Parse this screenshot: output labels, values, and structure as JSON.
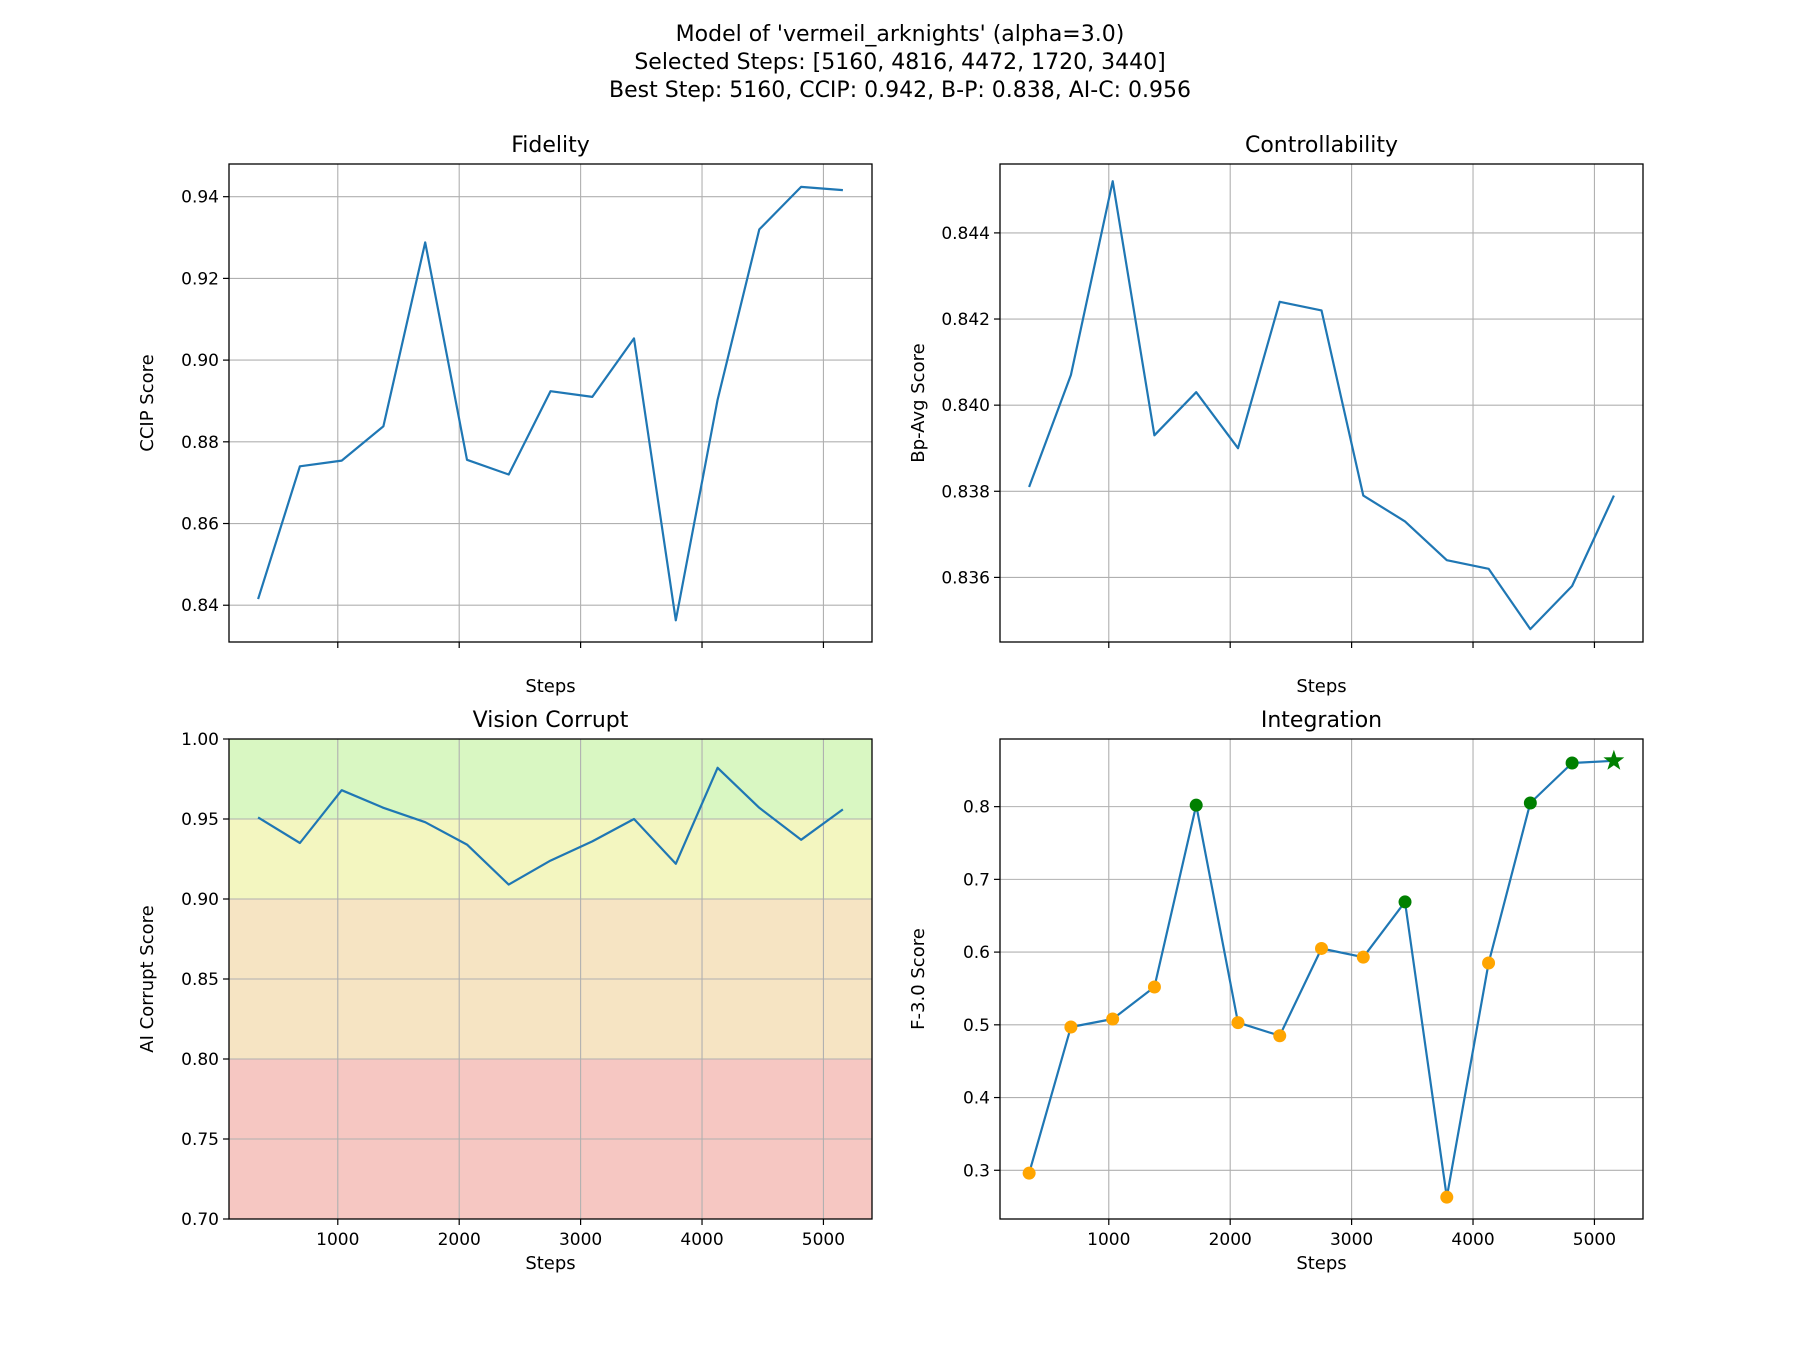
{
  "figure": {
    "title_lines": [
      "Model of 'vermeil_arknights' (alpha=3.0)",
      "Selected Steps: [5160, 4816, 4472, 1720, 3440]",
      "Best Step: 5160, CCIP: 0.942, B-P: 0.838, AI-C: 0.956"
    ],
    "line_color": "#1f77b4"
  },
  "chart_data": [
    {
      "id": "fidelity",
      "type": "line",
      "title": "Fidelity",
      "xlabel": "Steps",
      "ylabel": "CCIP Score",
      "x": [
        344,
        688,
        1032,
        1376,
        1720,
        2064,
        2408,
        2752,
        3096,
        3440,
        3784,
        4128,
        4472,
        4816,
        5160
      ],
      "y": [
        0.8415,
        0.874,
        0.8754,
        0.8838,
        0.9288,
        0.8756,
        0.872,
        0.8924,
        0.891,
        0.9053,
        0.8363,
        0.8903,
        0.932,
        0.9424,
        0.9416
      ],
      "xlim": [
        104,
        5400
      ],
      "ylim": [
        0.831,
        0.948
      ],
      "yticks": [
        0.84,
        0.86,
        0.88,
        0.9,
        0.92,
        0.94
      ],
      "ytick_labels": [
        "0.84",
        "0.86",
        "0.88",
        "0.90",
        "0.92",
        "0.94"
      ],
      "xticks": [
        1000,
        2000,
        3000,
        4000,
        5000
      ],
      "xtick_labels": [],
      "grid": true
    },
    {
      "id": "controllability",
      "type": "line",
      "title": "Controllability",
      "xlabel": "Steps",
      "ylabel": "Bp-Avg Score",
      "x": [
        344,
        688,
        1032,
        1376,
        1720,
        2064,
        2408,
        2752,
        3096,
        3440,
        3784,
        4128,
        4472,
        4816,
        5160
      ],
      "y": [
        0.8381,
        0.8407,
        0.8452,
        0.8393,
        0.8403,
        0.839,
        0.8424,
        0.8422,
        0.8379,
        0.8373,
        0.8364,
        0.8362,
        0.8348,
        0.8358,
        0.8379
      ],
      "xlim": [
        104,
        5400
      ],
      "ylim": [
        0.8345,
        0.8456
      ],
      "yticks": [
        0.836,
        0.838,
        0.84,
        0.842,
        0.844
      ],
      "ytick_labels": [
        "0.836",
        "0.838",
        "0.840",
        "0.842",
        "0.844"
      ],
      "xticks": [
        1000,
        2000,
        3000,
        4000,
        5000
      ],
      "xtick_labels": [],
      "grid": true
    },
    {
      "id": "vision-corrupt",
      "type": "line",
      "title": "Vision Corrupt",
      "xlabel": "Steps",
      "ylabel": "AI Corrupt Score",
      "x": [
        344,
        688,
        1032,
        1376,
        1720,
        2064,
        2408,
        2752,
        3096,
        3440,
        3784,
        4128,
        4472,
        4816,
        5160
      ],
      "y": [
        0.951,
        0.935,
        0.968,
        0.957,
        0.948,
        0.934,
        0.909,
        0.924,
        0.936,
        0.95,
        0.922,
        0.982,
        0.957,
        0.937,
        0.956
      ],
      "xlim": [
        104,
        5400
      ],
      "ylim": [
        0.7,
        1.0
      ],
      "yticks": [
        0.7,
        0.75,
        0.8,
        0.85,
        0.9,
        0.95,
        1.0
      ],
      "ytick_labels": [
        "0.70",
        "0.75",
        "0.80",
        "0.85",
        "0.90",
        "0.95",
        "1.00"
      ],
      "xticks": [
        1000,
        2000,
        3000,
        4000,
        5000
      ],
      "xtick_labels": [
        "1000",
        "2000",
        "3000",
        "4000",
        "5000"
      ],
      "grid": true,
      "bands": [
        {
          "from": 0.95,
          "to": 1.0,
          "color": "#d9f7c2"
        },
        {
          "from": 0.9,
          "to": 0.95,
          "color": "#f3f6c0"
        },
        {
          "from": 0.8,
          "to": 0.9,
          "color": "#f6e4c3"
        },
        {
          "from": 0.7,
          "to": 0.8,
          "color": "#f6c7c2"
        }
      ]
    },
    {
      "id": "integration",
      "type": "line",
      "title": "Integration",
      "xlabel": "Steps",
      "ylabel": "F-3.0 Score",
      "x": [
        344,
        688,
        1032,
        1376,
        1720,
        2064,
        2408,
        2752,
        3096,
        3440,
        3784,
        4128,
        4472,
        4816,
        5160
      ],
      "y": [
        0.296,
        0.497,
        0.508,
        0.552,
        0.802,
        0.503,
        0.485,
        0.605,
        0.593,
        0.669,
        0.263,
        0.585,
        0.805,
        0.86,
        0.863
      ],
      "xlim": [
        104,
        5400
      ],
      "ylim": [
        0.233,
        0.893
      ],
      "yticks": [
        0.3,
        0.4,
        0.5,
        0.6,
        0.7,
        0.8
      ],
      "ytick_labels": [
        "0.3",
        "0.4",
        "0.5",
        "0.6",
        "0.7",
        "0.8"
      ],
      "xticks": [
        1000,
        2000,
        3000,
        4000,
        5000
      ],
      "xtick_labels": [
        "1000",
        "2000",
        "3000",
        "4000",
        "5000"
      ],
      "grid": true,
      "selected_steps": [
        1720,
        3440,
        4472,
        4816
      ],
      "best_step": 5160,
      "other_color": "#ffa500",
      "selected_color": "#008000",
      "best_color": "#008000"
    }
  ]
}
